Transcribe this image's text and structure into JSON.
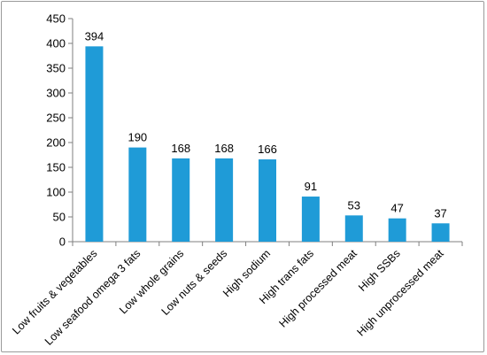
{
  "chart_data": {
    "type": "bar",
    "title": "",
    "xlabel": "",
    "ylabel": "",
    "categories": [
      "Low fruits & vegetables",
      "Low seafood omega 3 fats",
      "Low whole grains",
      "Low nuts & seeds",
      "High sodium",
      "High trans fats",
      "High processed meat",
      "High SSBs",
      "High unprocessed meat"
    ],
    "values": [
      394,
      190,
      168,
      168,
      166,
      91,
      53,
      47,
      37
    ],
    "ylim": [
      0,
      450
    ],
    "yticks": [
      0,
      50,
      100,
      150,
      200,
      250,
      300,
      350,
      400,
      450
    ],
    "grid": false,
    "legend": "none",
    "bar_color": "#1f9bd7"
  }
}
